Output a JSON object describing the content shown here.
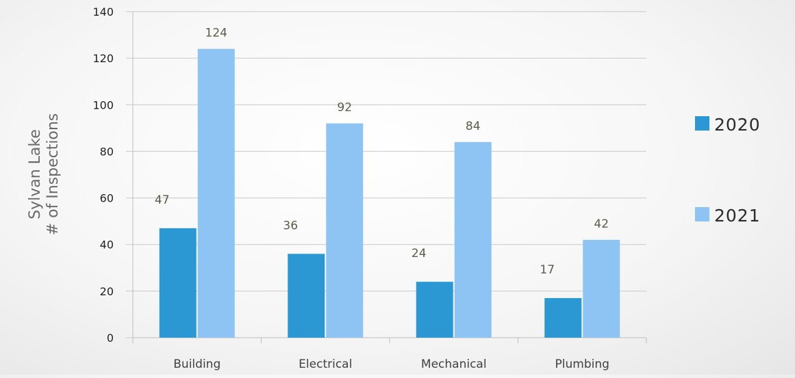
{
  "chart_data": {
    "type": "bar",
    "categories": [
      "Building",
      "Electrical",
      "Mechanical",
      "Plumbing"
    ],
    "series": [
      {
        "name": "2020",
        "values": [
          47,
          36,
          24,
          17
        ],
        "color": "#2b98d3"
      },
      {
        "name": "2021",
        "values": [
          124,
          92,
          84,
          42
        ],
        "color": "#8ec4f3"
      }
    ],
    "ylabel_lines": [
      "Sylvan Lake",
      "# of Inspections"
    ],
    "ylim": [
      0,
      140
    ],
    "yticks": [
      0,
      20,
      40,
      60,
      80,
      100,
      120,
      140
    ],
    "grid": true,
    "legend_position": "right",
    "data_labels": true
  }
}
